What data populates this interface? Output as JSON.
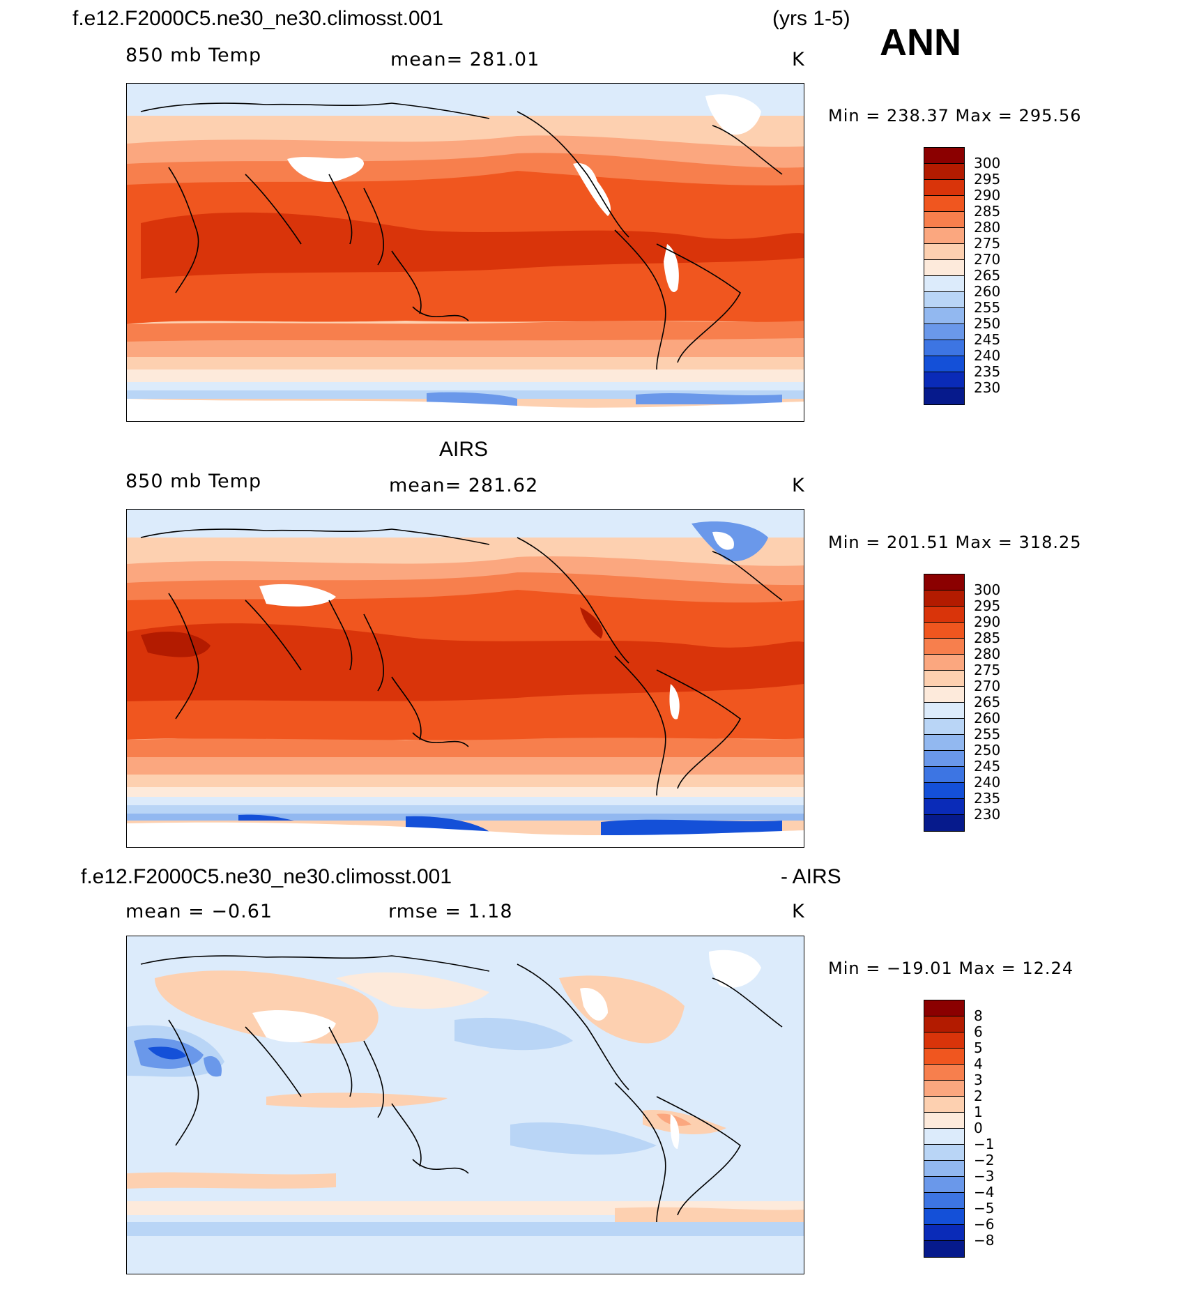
{
  "header": {
    "case_name": "f.e12.F2000C5.ne30_ne30.climosst.001",
    "years": "(yrs 1-5)",
    "season": "ANN"
  },
  "panels": [
    {
      "id": "model",
      "title": "",
      "variable": "850 mb Temp",
      "stat": "mean=  281.01",
      "units": "K",
      "minmax": "Min  =  238.37  Max  =  295.56",
      "colorbar": {
        "labels": [
          "300",
          "295",
          "290",
          "285",
          "280",
          "275",
          "270",
          "265",
          "260",
          "255",
          "250",
          "245",
          "240",
          "235",
          "230"
        ],
        "colors": [
          "#8b0000",
          "#b31b00",
          "#d9340a",
          "#f0561f",
          "#f77f4d",
          "#fba77f",
          "#fdd0b0",
          "#fdeadb",
          "#dcebfb",
          "#b9d5f6",
          "#92b8f0",
          "#6a98ea",
          "#3d75e3",
          "#1450d8",
          "#0a2bb8",
          "#061a8c"
        ]
      }
    },
    {
      "id": "obs",
      "title": "AIRS",
      "variable": "850 mb Temp",
      "stat": "mean=  281.62",
      "units": "K",
      "minmax": "Min  =  201.51  Max  =  318.25",
      "colorbar": {
        "labels": [
          "300",
          "295",
          "290",
          "285",
          "280",
          "275",
          "270",
          "265",
          "260",
          "255",
          "250",
          "245",
          "240",
          "235",
          "230"
        ],
        "colors": [
          "#8b0000",
          "#b31b00",
          "#d9340a",
          "#f0561f",
          "#f77f4d",
          "#fba77f",
          "#fdd0b0",
          "#fdeadb",
          "#dcebfb",
          "#b9d5f6",
          "#92b8f0",
          "#6a98ea",
          "#3d75e3",
          "#1450d8",
          "#0a2bb8",
          "#061a8c"
        ]
      }
    },
    {
      "id": "diff",
      "title_left": "f.e12.F2000C5.ne30_ne30.climosst.001",
      "title_right": "- AIRS",
      "stat_left": "mean  =    −0.61",
      "stat_mid": "rmse  =      1.18",
      "units": "K",
      "minmax": "Min  =  −19.01  Max  =    12.24",
      "colorbar": {
        "labels": [
          "8",
          "6",
          "5",
          "4",
          "3",
          "2",
          "1",
          "0",
          "−1",
          "−2",
          "−3",
          "−4",
          "−5",
          "−6",
          "−8"
        ],
        "colors": [
          "#8b0000",
          "#b31b00",
          "#d9340a",
          "#f0561f",
          "#f77f4d",
          "#fba77f",
          "#fdd0b0",
          "#fdeadb",
          "#dcebfb",
          "#b9d5f6",
          "#92b8f0",
          "#6a98ea",
          "#3d75e3",
          "#1450d8",
          "#0a2bb8",
          "#061a8c"
        ]
      }
    }
  ],
  "palette": {
    "dark_red": "#b31b00",
    "red": "#d9340a",
    "orange_red": "#f0561f",
    "orange": "#f77f4d",
    "salmon": "#fba77f",
    "peach": "#fdd0b0",
    "cream": "#fdeadb",
    "pale_blue": "#dcebfb",
    "light_blue": "#b9d5f6",
    "mid_blue": "#92b8f0",
    "blue": "#6a98ea",
    "deep_blue": "#1450d8"
  }
}
